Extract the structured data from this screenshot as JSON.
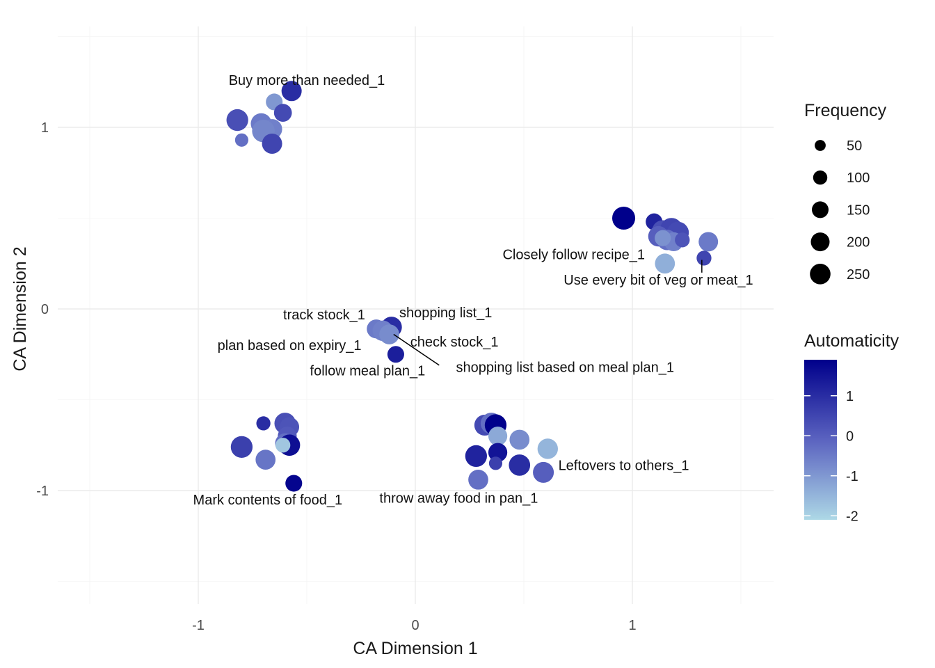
{
  "chart_data": {
    "type": "scatter",
    "title": "",
    "xlabel": "CA Dimension 1",
    "ylabel": "CA Dimension 2",
    "xlim": [
      -1.5,
      1.6
    ],
    "ylim": [
      -1.5,
      1.5
    ],
    "x_ticks": [
      {
        "value": -1,
        "label": "-1"
      },
      {
        "value": 0,
        "label": "0"
      },
      {
        "value": 1,
        "label": "1"
      }
    ],
    "y_ticks": [
      {
        "value": 1,
        "label": "1"
      },
      {
        "value": 0,
        "label": "0"
      },
      {
        "value": -1,
        "label": "-1"
      }
    ],
    "grid": true,
    "legend_position": "right",
    "size_legend": {
      "title": "Frequency",
      "entries": [
        {
          "value": 50,
          "label": "50"
        },
        {
          "value": 100,
          "label": "100"
        },
        {
          "value": 150,
          "label": "150"
        },
        {
          "value": 200,
          "label": "200"
        },
        {
          "value": 250,
          "label": "250"
        }
      ]
    },
    "color_legend": {
      "title": "Automaticity",
      "range": [
        -2.1,
        1.9
      ],
      "low_color": "#add8e6",
      "high_color": "#00008b",
      "ticks": [
        {
          "value": 1,
          "label": "1"
        },
        {
          "value": 0,
          "label": "0"
        },
        {
          "value": -1,
          "label": "-1"
        },
        {
          "value": -2,
          "label": "-2"
        }
      ]
    },
    "points": [
      {
        "x": -0.57,
        "y": 1.2,
        "freq": 175,
        "auto": 1.0
      },
      {
        "x": -0.65,
        "y": 1.14,
        "freq": 110,
        "auto": -1.0
      },
      {
        "x": -0.61,
        "y": 1.08,
        "freq": 130,
        "auto": 0.4
      },
      {
        "x": -0.82,
        "y": 1.04,
        "freq": 210,
        "auto": 0.3
      },
      {
        "x": -0.71,
        "y": 1.02,
        "freq": 190,
        "auto": -0.5
      },
      {
        "x": -0.66,
        "y": 0.99,
        "freq": 175,
        "auto": -0.6
      },
      {
        "x": -0.7,
        "y": 0.98,
        "freq": 230,
        "auto": -0.7
      },
      {
        "x": -0.8,
        "y": 0.93,
        "freq": 60,
        "auto": -0.3
      },
      {
        "x": -0.66,
        "y": 0.91,
        "freq": 175,
        "auto": 0.5
      },
      {
        "x": 0.96,
        "y": 0.5,
        "freq": 240,
        "auto": 1.9
      },
      {
        "x": 1.1,
        "y": 0.48,
        "freq": 110,
        "auto": 1.2
      },
      {
        "x": 1.14,
        "y": 0.43,
        "freq": 200,
        "auto": 0.3
      },
      {
        "x": 1.18,
        "y": 0.44,
        "freq": 220,
        "auto": 0.5
      },
      {
        "x": 1.21,
        "y": 0.42,
        "freq": 210,
        "auto": 0.4
      },
      {
        "x": 1.12,
        "y": 0.4,
        "freq": 180,
        "auto": 0.0
      },
      {
        "x": 1.16,
        "y": 0.38,
        "freq": 180,
        "auto": -0.3
      },
      {
        "x": 1.19,
        "y": 0.37,
        "freq": 150,
        "auto": -0.6
      },
      {
        "x": 1.14,
        "y": 0.39,
        "freq": 100,
        "auto": -0.9
      },
      {
        "x": 1.23,
        "y": 0.38,
        "freq": 80,
        "auto": 0.2
      },
      {
        "x": 1.35,
        "y": 0.37,
        "freq": 160,
        "auto": -0.5
      },
      {
        "x": 1.15,
        "y": 0.25,
        "freq": 170,
        "auto": -1.4
      },
      {
        "x": 1.33,
        "y": 0.28,
        "freq": 80,
        "auto": 0.5
      },
      {
        "x": -0.11,
        "y": -0.1,
        "freq": 190,
        "auto": 1.0
      },
      {
        "x": -0.18,
        "y": -0.11,
        "freq": 150,
        "auto": -0.5
      },
      {
        "x": -0.15,
        "y": -0.12,
        "freq": 180,
        "auto": -0.6
      },
      {
        "x": -0.12,
        "y": -0.14,
        "freq": 170,
        "auto": -0.8
      },
      {
        "x": -0.09,
        "y": -0.25,
        "freq": 110,
        "auto": 1.3
      },
      {
        "x": -0.6,
        "y": -0.63,
        "freq": 200,
        "auto": 0.3
      },
      {
        "x": -0.58,
        "y": -0.65,
        "freq": 160,
        "auto": 0.2
      },
      {
        "x": -0.7,
        "y": -0.63,
        "freq": 70,
        "auto": 1.0
      },
      {
        "x": -0.59,
        "y": -0.7,
        "freq": 150,
        "auto": 0.1
      },
      {
        "x": -0.6,
        "y": -0.74,
        "freq": 170,
        "auto": -0.3
      },
      {
        "x": -0.58,
        "y": -0.75,
        "freq": 200,
        "auto": 1.6
      },
      {
        "x": -0.61,
        "y": -0.75,
        "freq": 80,
        "auto": -1.8
      },
      {
        "x": -0.8,
        "y": -0.76,
        "freq": 210,
        "auto": 0.6
      },
      {
        "x": -0.69,
        "y": -0.83,
        "freq": 170,
        "auto": -0.4
      },
      {
        "x": -0.56,
        "y": -0.96,
        "freq": 110,
        "auto": 1.8
      },
      {
        "x": 0.32,
        "y": -0.64,
        "freq": 190,
        "auto": 0.4
      },
      {
        "x": 0.35,
        "y": -0.63,
        "freq": 200,
        "auto": -0.3
      },
      {
        "x": 0.37,
        "y": -0.64,
        "freq": 210,
        "auto": 1.9
      },
      {
        "x": 0.38,
        "y": -0.7,
        "freq": 150,
        "auto": -1.3
      },
      {
        "x": 0.48,
        "y": -0.72,
        "freq": 170,
        "auto": -0.8
      },
      {
        "x": 0.61,
        "y": -0.77,
        "freq": 180,
        "auto": -1.5
      },
      {
        "x": 0.38,
        "y": -0.79,
        "freq": 150,
        "auto": 1.5
      },
      {
        "x": 0.28,
        "y": -0.81,
        "freq": 210,
        "auto": 1.2
      },
      {
        "x": 0.37,
        "y": -0.85,
        "freq": 60,
        "auto": 0.6
      },
      {
        "x": 0.48,
        "y": -0.86,
        "freq": 200,
        "auto": 1.0
      },
      {
        "x": 0.59,
        "y": -0.9,
        "freq": 190,
        "auto": 0.0
      },
      {
        "x": 0.29,
        "y": -0.94,
        "freq": 170,
        "auto": -0.3
      }
    ],
    "labels": [
      {
        "text": "Buy more than needed_1",
        "x": -0.5,
        "y": 1.26
      },
      {
        "text": "Closely follow recipe_1",
        "x": 0.73,
        "y": 0.3
      },
      {
        "text": "Use every bit of veg or meat_1",
        "x": 1.12,
        "y": 0.16,
        "line_to": [
          1.32,
          0.27
        ]
      },
      {
        "text": "track stock_1",
        "x": -0.42,
        "y": -0.03
      },
      {
        "text": "shopping list_1",
        "x": 0.14,
        "y": -0.02
      },
      {
        "text": "plan based on expiry_1",
        "x": -0.58,
        "y": -0.2
      },
      {
        "text": "check stock_1",
        "x": 0.18,
        "y": -0.18
      },
      {
        "text": "shopping list based on meal plan_1",
        "x": 0.69,
        "y": -0.32,
        "line_from": [
          0.11,
          -0.31
        ],
        "line_to": [
          -0.1,
          -0.14
        ]
      },
      {
        "text": "follow meal plan_1",
        "x": -0.22,
        "y": -0.34
      },
      {
        "text": "Leftovers to others_1",
        "x": 0.96,
        "y": -0.86
      },
      {
        "text": "Mark contents of food_1",
        "x": -0.68,
        "y": -1.05
      },
      {
        "text": "throw away food in pan_1",
        "x": 0.2,
        "y": -1.04
      }
    ]
  }
}
